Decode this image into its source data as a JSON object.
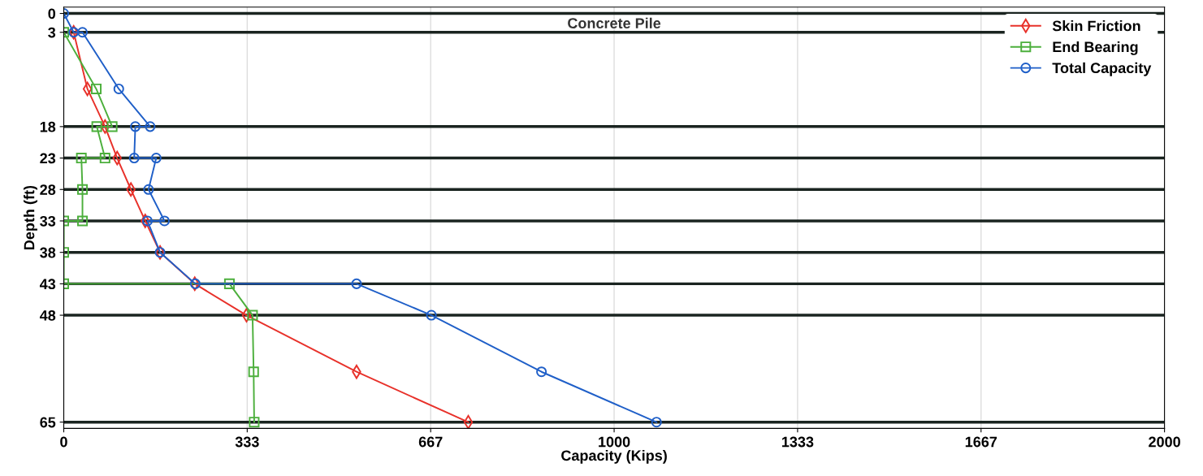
{
  "chart_data": {
    "type": "line",
    "subtitle": "Concrete Pile",
    "xlabel": "Capacity (Kips)",
    "ylabel": "Depth (ft)",
    "xlim": [
      0,
      2000
    ],
    "xticks": [
      0,
      {
        "value": 333.33,
        "label": "333"
      },
      {
        "value": 666.67,
        "label": "667"
      },
      1000,
      {
        "value": 1333.33,
        "label": "1333"
      },
      {
        "value": 1666.67,
        "label": "1667"
      },
      2000
    ],
    "ylim": [
      66,
      -1
    ],
    "yticks": [
      0,
      3,
      18,
      23,
      28,
      33,
      38,
      43,
      48,
      65
    ],
    "grid": true,
    "legend": "top right",
    "line_style": "solid",
    "series": [
      {
        "name": "Skin Friction",
        "color": "#e8312a",
        "marker": "diamond",
        "x": [
          18,
          43,
          75,
          97,
          122,
          148,
          175,
          238,
          332,
          532,
          735
        ],
        "values": [
          3,
          12,
          18,
          23,
          28,
          33,
          38,
          43,
          48,
          57,
          65
        ]
      },
      {
        "name": "End Bearing",
        "color": "#4caf3c",
        "marker": "square",
        "x": [
          0,
          59,
          88,
          60,
          75,
          32,
          34,
          34,
          0,
          0,
          0,
          301,
          343,
          345,
          346
        ],
        "values": [
          3,
          12,
          18,
          18,
          23,
          23,
          28,
          33,
          33,
          38,
          43,
          43,
          48,
          57,
          65
        ]
      },
      {
        "name": "Total Capacity",
        "color": "#1f5fc8",
        "marker": "circle",
        "x": [
          0,
          18,
          34,
          100,
          157,
          130,
          128,
          168,
          154,
          183,
          152,
          175,
          239,
          532,
          668,
          868,
          1077
        ],
        "values": [
          0,
          3,
          3,
          12,
          18,
          18,
          23,
          23,
          28,
          33,
          33,
          38,
          43,
          43,
          48,
          57,
          65
        ]
      }
    ]
  }
}
